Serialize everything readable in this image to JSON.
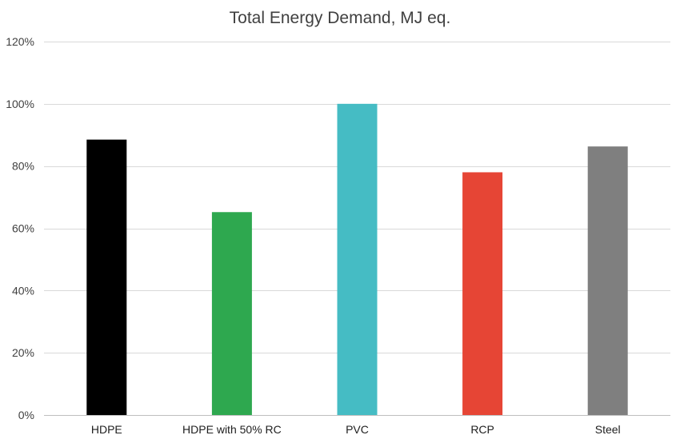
{
  "chart_data": {
    "type": "bar",
    "title": "Total Energy Demand, MJ eq.",
    "xlabel": "",
    "ylabel": "",
    "categories": [
      "HDPE",
      "HDPE with 50% RC",
      "PVC",
      "RCP",
      "Steel"
    ],
    "values": [
      88.5,
      65.2,
      100,
      78,
      86.3
    ],
    "unit": "%",
    "ylim": [
      0,
      120
    ],
    "yticks": [
      0,
      20,
      40,
      60,
      80,
      100,
      120
    ],
    "ytick_labels": [
      "0%",
      "20%",
      "40%",
      "60%",
      "80%",
      "100%",
      "120%"
    ],
    "grid": true,
    "legend": "none",
    "colors": [
      "#000000",
      "#2ea84f",
      "#45bcc4",
      "#e64535",
      "#7f7f7f"
    ]
  }
}
